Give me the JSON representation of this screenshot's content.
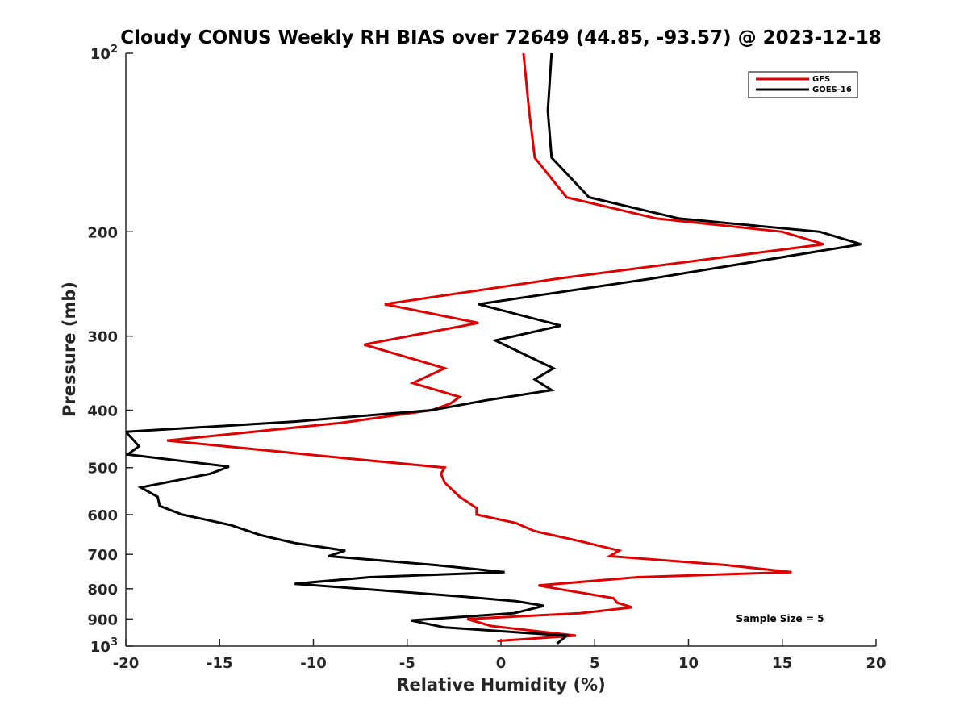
{
  "chart_data": {
    "type": "line",
    "title": "Cloudy CONUS Weekly RH BIAS over 72649 (44.85, -93.57) @ 2023-12-18",
    "xlabel": "Relative Humidity (%)",
    "ylabel": "Pressure (mb)",
    "xlim": [
      -20,
      20
    ],
    "ylim": [
      100,
      1000
    ],
    "y_scale": "log",
    "y_reversed": true,
    "x_ticks": [
      -20,
      -15,
      -10,
      -5,
      0,
      5,
      10,
      15,
      20
    ],
    "y_ticks": [
      {
        "value": 100,
        "base": "10",
        "exp": "2"
      },
      {
        "value": 200,
        "label": "200"
      },
      {
        "value": 300,
        "label": "300"
      },
      {
        "value": 400,
        "label": "400"
      },
      {
        "value": 500,
        "label": "500"
      },
      {
        "value": 600,
        "label": "600"
      },
      {
        "value": 700,
        "label": "700"
      },
      {
        "value": 800,
        "label": "800"
      },
      {
        "value": 900,
        "label": "900"
      },
      {
        "value": 1000,
        "base": "10",
        "exp": "3"
      }
    ],
    "grid": false,
    "legend_position": "top-right",
    "annotation": "Sample Size = 5",
    "series": [
      {
        "name": "GFS",
        "color": "#e00000",
        "points": [
          [
            1.2,
            100
          ],
          [
            1.5,
            125
          ],
          [
            1.8,
            150
          ],
          [
            3.5,
            175
          ],
          [
            8.3,
            190
          ],
          [
            15.0,
            200
          ],
          [
            17.2,
            210
          ],
          [
            3.0,
            240
          ],
          [
            -6.2,
            265
          ],
          [
            -1.2,
            285
          ],
          [
            -7.3,
            310
          ],
          [
            -3.0,
            340
          ],
          [
            -4.7,
            360
          ],
          [
            -2.2,
            380
          ],
          [
            -2.7,
            390
          ],
          [
            -3.7,
            400
          ],
          [
            -8.5,
            420
          ],
          [
            -17.8,
            450
          ],
          [
            -8.3,
            482
          ],
          [
            -3.0,
            500
          ],
          [
            -3.2,
            512
          ],
          [
            -3.0,
            530
          ],
          [
            -2.2,
            560
          ],
          [
            -1.3,
            585
          ],
          [
            -1.3,
            600
          ],
          [
            0.8,
            620
          ],
          [
            1.8,
            640
          ],
          [
            4.2,
            665
          ],
          [
            6.3,
            690
          ],
          [
            5.8,
            705
          ],
          [
            12.0,
            730
          ],
          [
            15.5,
            750
          ],
          [
            7.3,
            765
          ],
          [
            2.0,
            790
          ],
          [
            3.5,
            805
          ],
          [
            6.0,
            830
          ],
          [
            6.2,
            845
          ],
          [
            7.0,
            860
          ],
          [
            4.2,
            880
          ],
          [
            -1.8,
            900
          ],
          [
            -0.5,
            925
          ],
          [
            4.0,
            960
          ],
          [
            -0.2,
            980
          ]
        ]
      },
      {
        "name": "GOES-16",
        "color": "#000000",
        "points": [
          [
            2.7,
            100
          ],
          [
            2.5,
            125
          ],
          [
            2.7,
            150
          ],
          [
            4.7,
            175
          ],
          [
            9.5,
            190
          ],
          [
            17.0,
            200
          ],
          [
            19.2,
            210
          ],
          [
            8.0,
            240
          ],
          [
            -1.2,
            265
          ],
          [
            3.2,
            288
          ],
          [
            -0.3,
            305
          ],
          [
            2.8,
            340
          ],
          [
            1.8,
            355
          ],
          [
            2.7,
            370
          ],
          [
            -0.8,
            385
          ],
          [
            -3.7,
            400
          ],
          [
            -11.0,
            418
          ],
          [
            -20.0,
            435
          ],
          [
            -19.3,
            460
          ],
          [
            -19.9,
            475
          ],
          [
            -14.5,
            498
          ],
          [
            -15.5,
            512
          ],
          [
            -19.2,
            540
          ],
          [
            -18.3,
            560
          ],
          [
            -18.2,
            580
          ],
          [
            -17.0,
            600
          ],
          [
            -14.4,
            625
          ],
          [
            -12.8,
            650
          ],
          [
            -11.0,
            670
          ],
          [
            -8.3,
            690
          ],
          [
            -9.2,
            705
          ],
          [
            -3.5,
            730
          ],
          [
            0.2,
            750
          ],
          [
            -7.0,
            765
          ],
          [
            -11.0,
            785
          ],
          [
            -2.0,
            825
          ],
          [
            0.8,
            840
          ],
          [
            2.3,
            855
          ],
          [
            0.7,
            880
          ],
          [
            -4.8,
            905
          ],
          [
            -3.0,
            930
          ],
          [
            3.5,
            960
          ],
          [
            3.0,
            990
          ]
        ]
      }
    ]
  }
}
